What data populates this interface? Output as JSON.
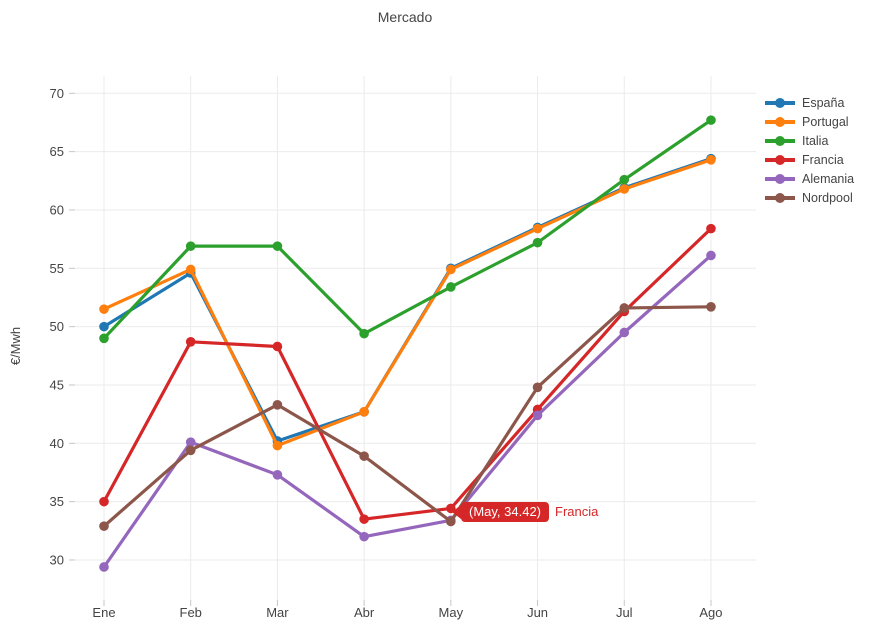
{
  "figure": {
    "title": "Mercado",
    "background": "#ffffff",
    "text_color": "#444444",
    "gridline_color": "#ebebeb",
    "tick_color": "#c6c6c6"
  },
  "chart_data": {
    "type": "line",
    "title": "Mercado",
    "xlabel": "",
    "ylabel": "€/Mwh",
    "categories": [
      "Ene",
      "Feb",
      "Mar",
      "Abr",
      "May",
      "Jun",
      "Jul",
      "Ago"
    ],
    "yticks": [
      30,
      35,
      40,
      45,
      50,
      55,
      60,
      65,
      70
    ],
    "ylim": [
      26.5,
      71.5
    ],
    "grid": true,
    "legend_position": "right",
    "series": [
      {
        "name": "España",
        "color": "#1f77b4",
        "values": [
          50.0,
          54.6,
          40.2,
          42.7,
          55.0,
          58.5,
          61.9,
          64.4
        ]
      },
      {
        "name": "Portugal",
        "color": "#ff7f0e",
        "values": [
          51.5,
          54.9,
          39.8,
          42.7,
          54.9,
          58.4,
          61.8,
          64.3
        ]
      },
      {
        "name": "Italia",
        "color": "#2ca02c",
        "values": [
          49.0,
          56.9,
          56.9,
          49.4,
          53.4,
          57.2,
          62.6,
          67.7
        ]
      },
      {
        "name": "Francia",
        "color": "#d62728",
        "values": [
          35.0,
          48.7,
          48.3,
          33.5,
          34.42,
          42.9,
          51.3,
          58.4
        ]
      },
      {
        "name": "Alemania",
        "color": "#9467bd",
        "values": [
          29.4,
          40.1,
          37.3,
          32.0,
          33.4,
          42.4,
          49.5,
          56.1
        ]
      },
      {
        "name": "Nordpool",
        "color": "#8c564b",
        "values": [
          32.9,
          39.4,
          43.3,
          38.9,
          33.3,
          44.8,
          51.6,
          51.7
        ]
      }
    ],
    "annotation": {
      "series": "Francia",
      "month": "May",
      "value": 34.42,
      "text": "(May, 34.42)",
      "label": "Francia",
      "color": "#d62728"
    }
  },
  "legend": {
    "items": [
      "España",
      "Portugal",
      "Italia",
      "Francia",
      "Alemania",
      "Nordpool"
    ]
  },
  "tooltip": {
    "text": "(May, 34.42)",
    "series_label": "Francia"
  }
}
